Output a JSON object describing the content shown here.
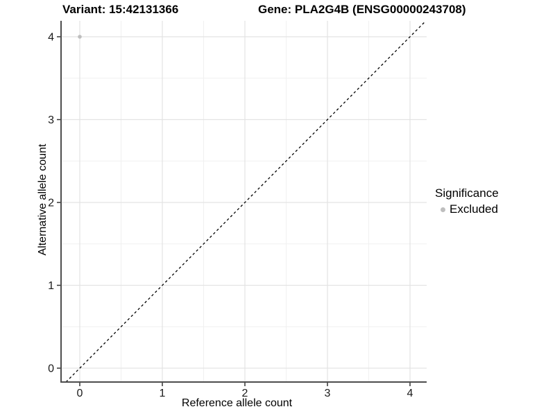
{
  "header": {
    "variant_title": "Variant: 15:42131366",
    "gene_title": "Gene: PLA2G4B (ENSG00000243708)"
  },
  "chart_data": {
    "type": "scatter",
    "xlabel": "Reference allele count",
    "ylabel": "Alternative allele count",
    "x_ticks": [
      0,
      1,
      2,
      3,
      4
    ],
    "y_ticks": [
      0,
      1,
      2,
      3,
      4
    ],
    "x_minor": [
      0.5,
      1.5,
      2.5,
      3.5
    ],
    "y_minor": [
      0.5,
      1.5,
      2.5,
      3.5
    ],
    "xlim": [
      -0.227,
      4.2
    ],
    "ylim": [
      -0.167,
      4.19
    ],
    "grid": "major+minor",
    "series": [
      {
        "name": "Excluded",
        "marker": "circle",
        "color": "#bebebe",
        "points": [
          {
            "x": 0,
            "y": 4
          }
        ]
      }
    ],
    "reference_line": {
      "type": "identity y=x",
      "style": "dashed",
      "color": "#000000"
    },
    "legend": {
      "title": "Significance",
      "position": "right",
      "entries": [
        {
          "label": "Excluded",
          "color": "#bebebe",
          "marker": "circle"
        }
      ]
    }
  },
  "colors": {
    "background": "#ffffff",
    "grid_major": "#e3e3e3",
    "grid_minor": "#f0f0f0",
    "axis_line": "#4d4d4d",
    "tick_mark": "#333333",
    "tick_label": "#1a1a1a",
    "point": "#bebebe"
  }
}
